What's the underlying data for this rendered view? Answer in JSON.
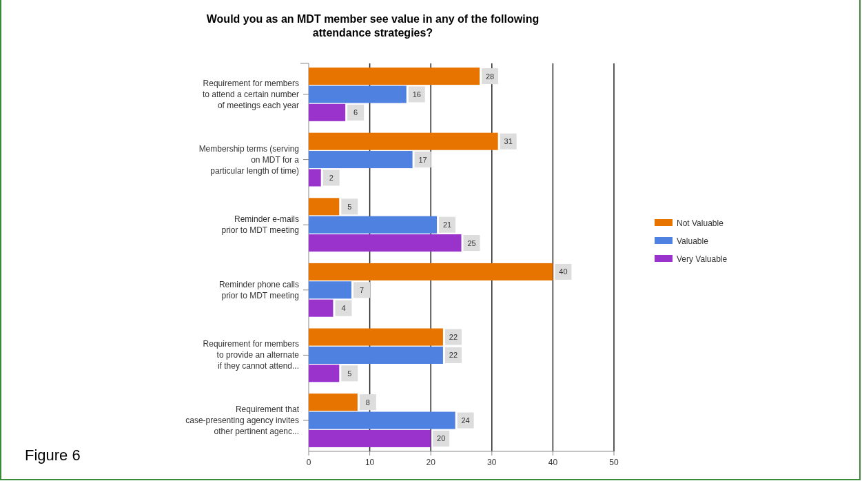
{
  "chart_data": {
    "type": "bar",
    "orientation": "horizontal",
    "title": "Would you as an MDT member see value in any of the following\nattendance strategies?",
    "categories": [
      "Requirement for members\nto attend a certain number\nof meetings each year",
      "Membership terms (serving\non MDT for a\nparticular length of time)",
      "Reminder e-mails\nprior to MDT meeting",
      "Reminder phone calls\nprior to MDT meeting",
      "Requirement for members\nto provide an alternate\nif they cannot attend...",
      "Requirement that\ncase-presenting agency invites\nother pertinent agenc..."
    ],
    "series": [
      {
        "name": "Not Valuable",
        "color": "#e87400",
        "values": [
          28,
          31,
          5,
          40,
          22,
          8
        ]
      },
      {
        "name": "Valuable",
        "color": "#4f81e0",
        "values": [
          16,
          17,
          21,
          7,
          22,
          24
        ]
      },
      {
        "name": "Very Valuable",
        "color": "#9933cc",
        "values": [
          6,
          2,
          25,
          4,
          5,
          20
        ]
      }
    ],
    "xlim": [
      0,
      50
    ],
    "xticks": [
      0,
      10,
      20,
      30,
      40,
      50
    ],
    "grid": "x",
    "legend": "right",
    "data_labels": true,
    "annotations": [
      "Figure 6"
    ]
  }
}
